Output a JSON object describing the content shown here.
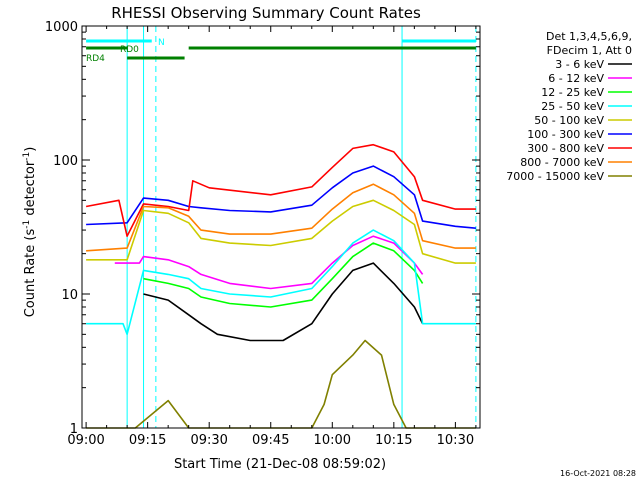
{
  "chart_data": {
    "type": "line",
    "title": "RHESSI Observing Summary Count Rates",
    "xlabel": "Start Time (21-Dec-08 08:59:02)",
    "ylabel_main": "Count Rate (s",
    "ylabel_sup1": "-1",
    "ylabel_mid": " detector",
    "ylabel_sup2": "-1",
    "ylabel_end": ")",
    "y_scale": "log",
    "ylim": [
      1,
      1000
    ],
    "xlim": [
      "08:59:00",
      "10:36:00"
    ],
    "x_ticks": [
      {
        "t": "09:00",
        "label": "09:00"
      },
      {
        "t": "09:15",
        "label": "09:15"
      },
      {
        "t": "09:30",
        "label": "09:30"
      },
      {
        "t": "09:45",
        "label": "09:45"
      },
      {
        "t": "10:00",
        "label": "10:00"
      },
      {
        "t": "10:15",
        "label": "10:15"
      },
      {
        "t": "10:30",
        "label": "10:30"
      }
    ],
    "y_ticks": [
      {
        "v": 1,
        "label": "1"
      },
      {
        "v": 10,
        "label": "10"
      },
      {
        "v": 100,
        "label": "100"
      },
      {
        "v": 1000,
        "label": "1000"
      }
    ],
    "legend_header": [
      "Det 1,3,4,5,6,9,",
      "FDecim 1, Att 0"
    ],
    "legend_placement": "right",
    "footer_date": "16-Oct-2021 08:28",
    "state_bars": [
      {
        "label": "N",
        "color": "#00ffff",
        "segments": [
          [
            "09:00",
            "09:16"
          ],
          [
            "10:17",
            "10:35"
          ]
        ]
      },
      {
        "label": "RD0",
        "color": "#008000",
        "segments": [
          [
            "09:00",
            "09:10"
          ],
          [
            "09:25",
            "10:35"
          ]
        ]
      },
      {
        "label": "RD4",
        "color": "#008000",
        "segments": [
          [
            "09:10",
            "09:24"
          ]
        ]
      }
    ],
    "vertical_markers": [
      {
        "t": "09:10",
        "style": "solid",
        "color": "#00ffff"
      },
      {
        "t": "09:14",
        "style": "solid",
        "color": "#00ffff"
      },
      {
        "t": "09:17",
        "style": "dashed",
        "color": "#00ffff"
      },
      {
        "t": "10:17",
        "style": "solid",
        "color": "#00ffff"
      },
      {
        "t": "10:35",
        "style": "dashed",
        "color": "#00ffff"
      }
    ],
    "series": [
      {
        "name": "3 - 6 keV",
        "color": "#000000",
        "x": [
          "09:14",
          "09:20",
          "09:25",
          "09:28",
          "09:32",
          "09:40",
          "09:48",
          "09:55",
          "10:00",
          "10:05",
          "10:10",
          "10:15",
          "10:20",
          "10:22"
        ],
        "y": [
          10,
          9,
          7,
          6,
          5,
          4.5,
          4.5,
          6,
          10,
          15,
          17,
          12,
          8,
          6
        ]
      },
      {
        "name": "6 - 12 keV",
        "color": "#ff00ff",
        "x": [
          "09:07",
          "09:13",
          "09:14",
          "09:20",
          "09:25",
          "09:28",
          "09:35",
          "09:45",
          "09:55",
          "10:00",
          "10:05",
          "10:10",
          "10:15",
          "10:20",
          "10:22"
        ],
        "y": [
          17,
          17,
          19,
          18,
          16,
          14,
          12,
          11,
          12,
          17,
          23,
          27,
          24,
          17,
          14
        ]
      },
      {
        "name": "12 - 25 keV",
        "color": "#00ff00",
        "x": [
          "09:14",
          "09:20",
          "09:25",
          "09:28",
          "09:35",
          "09:45",
          "09:55",
          "10:00",
          "10:05",
          "10:10",
          "10:15",
          "10:20",
          "10:22"
        ],
        "y": [
          13,
          12,
          11,
          9.5,
          8.5,
          8,
          9,
          13,
          19,
          24,
          21,
          15,
          12
        ]
      },
      {
        "name": "25 - 50 keV",
        "color": "#00ffff",
        "x": [
          "09:00",
          "09:05",
          "09:09",
          "09:10",
          "09:14",
          "09:20",
          "09:25",
          "09:28",
          "09:35",
          "09:45",
          "09:55",
          "10:00",
          "10:05",
          "10:10",
          "10:15",
          "10:20",
          "10:22",
          "10:25",
          "10:30",
          "10:35"
        ],
        "y": [
          6,
          6,
          6,
          5,
          15,
          14,
          13,
          11,
          10,
          9.5,
          11,
          16,
          24,
          30,
          25,
          17,
          6,
          6,
          6,
          6
        ]
      },
      {
        "name": "50 - 100 keV",
        "color": "#cccc00",
        "x": [
          "09:00",
          "09:10",
          "09:14",
          "09:20",
          "09:25",
          "09:28",
          "09:35",
          "09:45",
          "09:55",
          "10:00",
          "10:05",
          "10:10",
          "10:15",
          "10:20",
          "10:22",
          "10:30",
          "10:35"
        ],
        "y": [
          18,
          18,
          42,
          40,
          34,
          26,
          24,
          23,
          26,
          35,
          45,
          50,
          42,
          33,
          20,
          17,
          17
        ]
      },
      {
        "name": "100 - 300 keV",
        "color": "#0000ff",
        "x": [
          "09:00",
          "09:10",
          "09:14",
          "09:20",
          "09:25",
          "09:28",
          "09:35",
          "09:45",
          "09:55",
          "10:00",
          "10:05",
          "10:10",
          "10:15",
          "10:20",
          "10:22",
          "10:30",
          "10:35"
        ],
        "y": [
          33,
          34,
          52,
          50,
          45,
          44,
          42,
          41,
          46,
          62,
          80,
          90,
          75,
          55,
          35,
          32,
          31
        ]
      },
      {
        "name": "300 - 800 keV",
        "color": "#ff0000",
        "x": [
          "09:00",
          "09:08",
          "09:10",
          "09:14",
          "09:20",
          "09:25",
          "09:26",
          "09:30",
          "09:45",
          "09:55",
          "10:00",
          "10:05",
          "10:10",
          "10:15",
          "10:20",
          "10:22",
          "10:30",
          "10:35"
        ],
        "y": [
          45,
          50,
          27,
          47,
          45,
          42,
          70,
          62,
          55,
          63,
          88,
          122,
          130,
          115,
          75,
          50,
          43,
          43
        ]
      },
      {
        "name": "800 - 7000 keV",
        "color": "#ff8000",
        "x": [
          "09:00",
          "09:10",
          "09:14",
          "09:20",
          "09:25",
          "09:28",
          "09:35",
          "09:45",
          "09:55",
          "10:00",
          "10:05",
          "10:10",
          "10:15",
          "10:20",
          "10:22",
          "10:30",
          "10:35"
        ],
        "y": [
          21,
          22,
          45,
          44,
          38,
          30,
          28,
          28,
          31,
          43,
          57,
          66,
          55,
          40,
          25,
          22,
          22
        ]
      },
      {
        "name": "7000 - 15000 keV",
        "color": "#808000",
        "x": [
          "09:00",
          "09:12",
          "09:20",
          "09:25",
          "09:35",
          "09:55",
          "09:58",
          "10:00",
          "10:05",
          "10:08",
          "10:12",
          "10:15",
          "10:18",
          "10:35"
        ],
        "y": [
          1,
          1,
          1.6,
          1,
          1,
          1,
          1.5,
          2.5,
          3.5,
          4.5,
          3.5,
          1.5,
          1,
          1
        ]
      }
    ]
  }
}
